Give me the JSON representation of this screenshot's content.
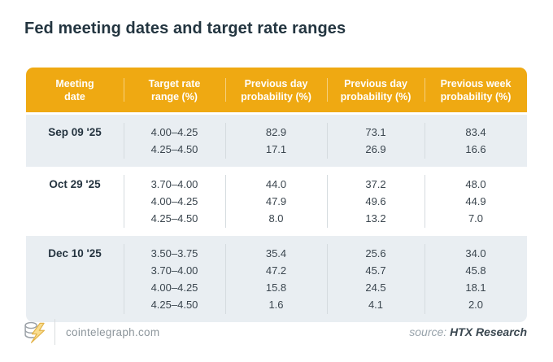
{
  "title": "Fed meeting dates and target rate ranges",
  "colors": {
    "header_bg": "#EFA912",
    "band_bg": "#E9EEF2",
    "title_text": "#233540",
    "header_text": "#ffffff",
    "body_text": "#3A454E",
    "column_separator": "#D5DBDF",
    "bolt_fill": "#F9DD8F",
    "bolt_stroke": "#E3B44A",
    "coin_stroke": "#9AA0A6"
  },
  "table": {
    "header_lines": [
      {
        "line1": "Meeting",
        "line2": "date"
      },
      {
        "line1": "Target rate",
        "line2": "range (%)"
      },
      {
        "line1": "Previous day",
        "line2": "probability (%)"
      },
      {
        "line1": "Previous day",
        "line2": "probability (%)"
      },
      {
        "line1": "Previous week",
        "line2": "probability (%)"
      }
    ]
  },
  "chart_data": {
    "type": "table",
    "title": "Fed meeting dates and target rate ranges",
    "columns": [
      "Meeting date",
      "Target rate range (%)",
      "Previous day probability (%)",
      "Previous day probability (%)",
      "Previous week probability (%)"
    ],
    "groups": [
      {
        "date": "Sep 09 '25",
        "rows": [
          [
            "4.00–4.25",
            "82.9",
            "73.1",
            "83.4"
          ],
          [
            "4.25–4.50",
            "17.1",
            "26.9",
            "16.6"
          ]
        ]
      },
      {
        "date": "Oct 29 '25",
        "rows": [
          [
            "3.70–4.00",
            "44.0",
            "37.2",
            "48.0"
          ],
          [
            "4.00–4.25",
            "47.9",
            "49.6",
            "44.9"
          ],
          [
            "4.25–4.50",
            "8.0",
            "13.2",
            "7.0"
          ]
        ]
      },
      {
        "date": "Dec 10 '25",
        "rows": [
          [
            "3.50–3.75",
            "35.4",
            "25.6",
            "34.0"
          ],
          [
            "3.70–4.00",
            "47.2",
            "45.7",
            "45.8"
          ],
          [
            "4.00–4.25",
            "15.8",
            "24.5",
            "18.1"
          ],
          [
            "4.25–4.50",
            "1.6",
            "4.1",
            "2.0"
          ]
        ]
      }
    ]
  },
  "footer": {
    "site": "cointelegraph.com",
    "source_label": "source:",
    "source_name": "HTX Research",
    "logo": "cointelegraph-coin-bolt-icon"
  }
}
